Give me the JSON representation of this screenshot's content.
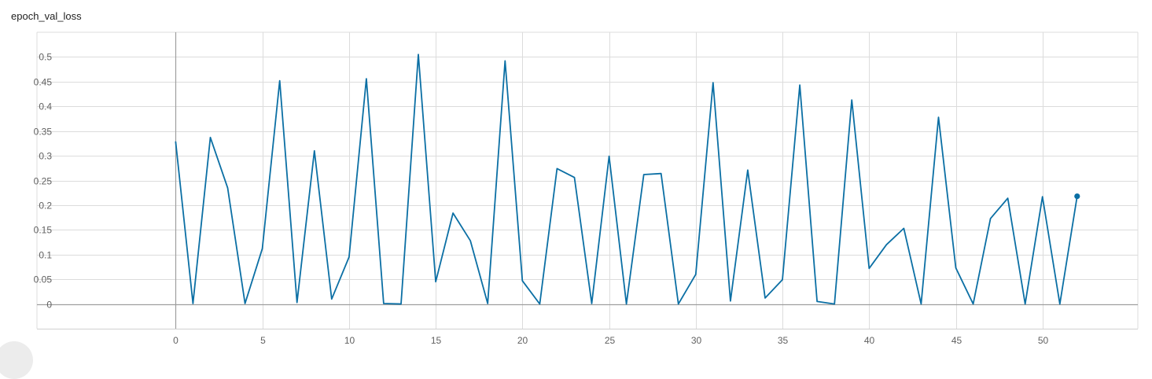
{
  "chart_data": {
    "type": "line",
    "title": "epoch_val_loss",
    "xlabel": "",
    "ylabel": "",
    "xlim": [
      -8,
      55.5
    ],
    "ylim": [
      -0.05,
      0.55
    ],
    "x_ticks": [
      0,
      5,
      10,
      15,
      20,
      25,
      30,
      35,
      40,
      45,
      50
    ],
    "y_ticks": [
      0,
      0.05,
      0.1,
      0.15,
      0.2,
      0.25,
      0.3,
      0.35,
      0.4,
      0.45,
      0.5
    ],
    "x_tick_labels": [
      "0",
      "5",
      "10",
      "15",
      "20",
      "25",
      "30",
      "35",
      "40",
      "45",
      "50"
    ],
    "y_tick_labels": [
      "0",
      "0.05",
      "0.1",
      "0.15",
      "0.2",
      "0.25",
      "0.3",
      "0.35",
      "0.4",
      "0.45",
      "0.5"
    ],
    "grid": true,
    "series": [
      {
        "color": "#0b6fa4",
        "x": [
          0,
          1,
          2,
          3,
          4,
          5,
          6,
          7,
          8,
          9,
          10,
          11,
          12,
          13,
          14,
          15,
          16,
          17,
          18,
          19,
          20,
          21,
          22,
          23,
          24,
          25,
          26,
          27,
          28,
          29,
          30,
          31,
          32,
          33,
          34,
          35,
          36,
          37,
          38,
          39,
          40,
          41,
          42,
          43,
          44,
          45,
          46,
          47,
          48,
          49,
          50,
          51,
          52
        ],
        "values": [
          0.328,
          0.001,
          0.337,
          0.235,
          0.001,
          0.112,
          0.452,
          0.003,
          0.31,
          0.01,
          0.095,
          0.456,
          0.001,
          0.0,
          0.505,
          0.045,
          0.184,
          0.128,
          0.001,
          0.492,
          0.047,
          0.0,
          0.274,
          0.256,
          0.001,
          0.299,
          0.0,
          0.262,
          0.264,
          0.0,
          0.06,
          0.448,
          0.006,
          0.271,
          0.012,
          0.049,
          0.443,
          0.005,
          0.0,
          0.413,
          0.072,
          0.12,
          0.153,
          0.0,
          0.378,
          0.073,
          0.0,
          0.173,
          0.214,
          0.0,
          0.217,
          0.0,
          0.218
        ]
      }
    ]
  }
}
